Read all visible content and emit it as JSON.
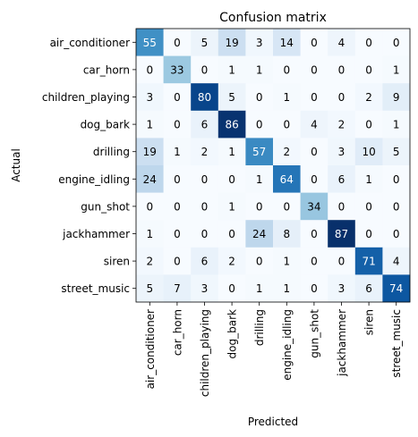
{
  "chart_data": {
    "type": "heatmap",
    "title": "Confusion matrix",
    "xlabel": "Predicted",
    "ylabel": "Actual",
    "x_categories": [
      "air_conditioner",
      "car_horn",
      "children_playing",
      "dog_bark",
      "drilling",
      "engine_idling",
      "gun_shot",
      "jackhammer",
      "siren",
      "street_music"
    ],
    "y_categories": [
      "air_conditioner",
      "car_horn",
      "children_playing",
      "dog_bark",
      "drilling",
      "engine_idling",
      "gun_shot",
      "jackhammer",
      "siren",
      "street_music"
    ],
    "values": [
      [
        55,
        0,
        5,
        19,
        3,
        14,
        0,
        4,
        0,
        0
      ],
      [
        0,
        33,
        0,
        1,
        1,
        0,
        0,
        0,
        0,
        1
      ],
      [
        3,
        0,
        80,
        5,
        0,
        1,
        0,
        0,
        2,
        9
      ],
      [
        1,
        0,
        6,
        86,
        0,
        0,
        4,
        2,
        0,
        1
      ],
      [
        19,
        1,
        2,
        1,
        57,
        2,
        0,
        3,
        10,
        5
      ],
      [
        24,
        0,
        0,
        0,
        1,
        64,
        0,
        6,
        1,
        0
      ],
      [
        0,
        0,
        0,
        1,
        0,
        0,
        34,
        0,
        0,
        0
      ],
      [
        1,
        0,
        0,
        0,
        24,
        8,
        0,
        87,
        0,
        0
      ],
      [
        2,
        0,
        6,
        2,
        0,
        1,
        0,
        0,
        71,
        4
      ],
      [
        5,
        7,
        3,
        0,
        1,
        1,
        0,
        3,
        6,
        74
      ]
    ],
    "colormap": "Blues",
    "color_low": "#f7fbff",
    "color_high": "#08306b",
    "text_light": "#ffffff",
    "text_dark": "#000000",
    "grid": false
  }
}
